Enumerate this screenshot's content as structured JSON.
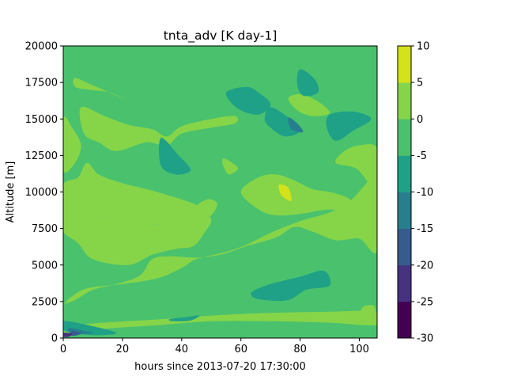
{
  "chart_data": {
    "type": "contourf",
    "title": "tnta_adv [K day-1]",
    "xlabel": "hours since 2013-07-20 17:30:00",
    "ylabel": "Altitude [m]",
    "xlim": [
      0,
      106
    ],
    "ylim": [
      0,
      20000
    ],
    "x_ticks": [
      0,
      20,
      40,
      60,
      80,
      100
    ],
    "y_ticks": [
      0,
      2500,
      5000,
      7500,
      10000,
      12500,
      15000,
      17500,
      20000
    ],
    "colorbar": {
      "levels": [
        -30,
        -25,
        -20,
        -15,
        -10,
        -5,
        0,
        5,
        10
      ],
      "colors": [
        "#440154",
        "#46327e",
        "#365c8d",
        "#277f8e",
        "#1fa187",
        "#4ac16d",
        "#86d549",
        "#d4e21a"
      ]
    },
    "background_level_range": [
      -5,
      0
    ],
    "regions": [
      {
        "level_range": [
          0,
          5
        ],
        "points": [
          [
            0,
            2200
          ],
          [
            2,
            2700
          ],
          [
            8,
            3400
          ],
          [
            20,
            3700
          ],
          [
            32,
            4100
          ],
          [
            40,
            4800
          ],
          [
            45,
            5400
          ],
          [
            55,
            5900
          ],
          [
            62,
            6400
          ],
          [
            70,
            7200
          ],
          [
            80,
            8000
          ],
          [
            90,
            8600
          ],
          [
            97,
            9400
          ],
          [
            102,
            10500
          ],
          [
            106,
            11200
          ],
          [
            106,
            6000
          ],
          [
            100,
            6800
          ],
          [
            92,
            6700
          ],
          [
            84,
            7300
          ],
          [
            78,
            7600
          ],
          [
            72,
            6900
          ],
          [
            62,
            6300
          ],
          [
            55,
            5800
          ],
          [
            50,
            5600
          ],
          [
            44,
            5500
          ],
          [
            36,
            5600
          ],
          [
            30,
            5400
          ],
          [
            26,
            4300
          ],
          [
            18,
            3700
          ],
          [
            10,
            3300
          ],
          [
            4,
            2600
          ],
          [
            0,
            2300
          ]
        ]
      },
      {
        "level_range": [
          0,
          5
        ],
        "points": [
          [
            0,
            7300
          ],
          [
            5,
            6500
          ],
          [
            10,
            5400
          ],
          [
            22,
            5000
          ],
          [
            30,
            5700
          ],
          [
            38,
            6100
          ],
          [
            44,
            6300
          ],
          [
            48,
            7300
          ],
          [
            50,
            8100
          ],
          [
            47,
            8600
          ],
          [
            40,
            8000
          ],
          [
            30,
            7800
          ],
          [
            20,
            8200
          ],
          [
            12,
            8300
          ],
          [
            4,
            8500
          ],
          [
            0,
            8600
          ]
        ]
      },
      {
        "level_range": [
          0,
          5
        ],
        "points": [
          [
            0,
            8600
          ],
          [
            4,
            8500
          ],
          [
            12,
            8300
          ],
          [
            20,
            8200
          ],
          [
            30,
            7800
          ],
          [
            40,
            8000
          ],
          [
            47,
            8600
          ],
          [
            44,
            9200
          ],
          [
            35,
            9800
          ],
          [
            28,
            10200
          ],
          [
            20,
            10600
          ],
          [
            12,
            11200
          ],
          [
            8,
            12000
          ],
          [
            5,
            11000
          ],
          [
            0,
            10500
          ]
        ]
      },
      {
        "level_range": [
          0,
          5
        ],
        "points": [
          [
            60,
            10000
          ],
          [
            66,
            11000
          ],
          [
            72,
            11200
          ],
          [
            78,
            10800
          ],
          [
            84,
            10200
          ],
          [
            90,
            10000
          ],
          [
            96,
            9600
          ],
          [
            100,
            8900
          ],
          [
            98,
            8500
          ],
          [
            90,
            8800
          ],
          [
            80,
            8500
          ],
          [
            72,
            8400
          ],
          [
            66,
            8800
          ]
        ]
      },
      {
        "level_range": [
          0,
          5
        ],
        "points": [
          [
            92,
            12000
          ],
          [
            99,
            11600
          ],
          [
            104,
            10400
          ],
          [
            106,
            10600
          ],
          [
            106,
            13000
          ],
          [
            100,
            13200
          ],
          [
            95,
            12800
          ]
        ]
      },
      {
        "level_range": [
          0,
          5
        ],
        "points": [
          [
            6,
            15800
          ],
          [
            14,
            15200
          ],
          [
            22,
            14600
          ],
          [
            30,
            14300
          ],
          [
            35,
            13800
          ],
          [
            40,
            14500
          ],
          [
            50,
            15000
          ],
          [
            58,
            15200
          ],
          [
            58,
            14700
          ],
          [
            50,
            14400
          ],
          [
            40,
            14000
          ],
          [
            35,
            13200
          ],
          [
            28,
            13400
          ],
          [
            18,
            12800
          ],
          [
            12,
            13400
          ],
          [
            7,
            14000
          ]
        ]
      },
      {
        "level_range": [
          0,
          5
        ],
        "points": [
          [
            4,
            17800
          ],
          [
            10,
            17300
          ],
          [
            18,
            16600
          ],
          [
            22,
            16200
          ],
          [
            16,
            16800
          ],
          [
            9,
            17000
          ],
          [
            4,
            17200
          ]
        ]
      },
      {
        "level_range": [
          0,
          5
        ],
        "points": [
          [
            0,
            15000
          ],
          [
            3,
            14400
          ],
          [
            6,
            13200
          ],
          [
            4,
            12000
          ],
          [
            0,
            11500
          ]
        ]
      },
      {
        "level_range": [
          0,
          5
        ],
        "points": [
          [
            46,
            8000
          ],
          [
            50,
            8400
          ],
          [
            52,
            9200
          ],
          [
            49,
            9500
          ],
          [
            45,
            9000
          ]
        ]
      },
      {
        "level_range": [
          0,
          5
        ],
        "points": [
          [
            54,
            12300
          ],
          [
            57,
            12000
          ],
          [
            59,
            11600
          ],
          [
            56,
            11200
          ],
          [
            54,
            11800
          ]
        ]
      },
      {
        "level_range": [
          0,
          5
        ],
        "points": [
          [
            76,
            16400
          ],
          [
            80,
            16700
          ],
          [
            86,
            16200
          ],
          [
            90,
            15400
          ],
          [
            84,
            15200
          ],
          [
            79,
            15600
          ]
        ]
      },
      {
        "level_range": [
          0,
          5
        ],
        "points": [
          [
            0,
            700
          ],
          [
            10,
            1000
          ],
          [
            30,
            1250
          ],
          [
            60,
            1650
          ],
          [
            90,
            1800
          ],
          [
            106,
            1800
          ],
          [
            106,
            900
          ],
          [
            90,
            1050
          ],
          [
            70,
            1150
          ],
          [
            50,
            1150
          ],
          [
            30,
            850
          ],
          [
            15,
            650
          ],
          [
            5,
            300
          ],
          [
            0,
            300
          ]
        ]
      },
      {
        "level_range": [
          0,
          5
        ],
        "points": [
          [
            101,
            2100
          ],
          [
            105,
            2200
          ],
          [
            105,
            1300
          ],
          [
            101,
            1400
          ]
        ]
      },
      {
        "level_range": [
          -10,
          -5
        ],
        "points": [
          [
            33,
            13700
          ],
          [
            39,
            12500
          ],
          [
            43,
            11500
          ],
          [
            38,
            11200
          ],
          [
            33,
            11800
          ]
        ]
      },
      {
        "level_range": [
          -10,
          -5
        ],
        "points": [
          [
            64,
            3200
          ],
          [
            70,
            3700
          ],
          [
            80,
            4200
          ],
          [
            88,
            4600
          ],
          [
            90,
            3600
          ],
          [
            82,
            3300
          ],
          [
            76,
            2600
          ],
          [
            68,
            2600
          ],
          [
            64,
            2800
          ]
        ]
      },
      {
        "level_range": [
          -10,
          -5
        ],
        "points": [
          [
            55,
            16800
          ],
          [
            62,
            17200
          ],
          [
            66,
            16800
          ],
          [
            70,
            16000
          ],
          [
            66,
            15300
          ],
          [
            59,
            15700
          ]
        ]
      },
      {
        "level_range": [
          -10,
          -5
        ],
        "points": [
          [
            80,
            18400
          ],
          [
            85,
            17700
          ],
          [
            86,
            16800
          ],
          [
            81,
            16600
          ],
          [
            79,
            17400
          ]
        ]
      },
      {
        "level_range": [
          -10,
          -5
        ],
        "points": [
          [
            90,
            15300
          ],
          [
            98,
            15500
          ],
          [
            104,
            15000
          ],
          [
            98,
            14200
          ],
          [
            92,
            13500
          ],
          [
            89,
            14400
          ]
        ]
      },
      {
        "level_range": [
          -10,
          -5
        ],
        "points": [
          [
            70,
            15800
          ],
          [
            76,
            15100
          ],
          [
            80,
            14200
          ],
          [
            75,
            13800
          ],
          [
            70,
            14400
          ],
          [
            68,
            15000
          ]
        ]
      },
      {
        "level_range": [
          -10,
          -5
        ],
        "points": [
          [
            36,
            1300
          ],
          [
            42,
            1450
          ],
          [
            46,
            1550
          ],
          [
            43,
            1200
          ],
          [
            37,
            1150
          ]
        ]
      },
      {
        "level_range": [
          -10,
          -5
        ],
        "points": [
          [
            0,
            1150
          ],
          [
            8,
            900
          ],
          [
            18,
            350
          ],
          [
            10,
            200
          ],
          [
            2,
            400
          ],
          [
            0,
            600
          ]
        ]
      },
      {
        "level_range": [
          -15,
          -10
        ],
        "points": [
          [
            76,
            15100
          ],
          [
            79,
            14700
          ],
          [
            81,
            14100
          ],
          [
            77,
            14300
          ]
        ]
      },
      {
        "level_range": [
          -15,
          -10
        ],
        "points": [
          [
            2,
            700
          ],
          [
            7,
            500
          ],
          [
            10,
            350
          ],
          [
            4,
            250
          ],
          [
            2,
            400
          ]
        ]
      },
      {
        "level_range": [
          -20,
          -15
        ],
        "points": [
          [
            3,
            500
          ],
          [
            6,
            300
          ],
          [
            3,
            150
          ]
        ]
      },
      {
        "level_range": [
          -25,
          -20
        ],
        "points": [
          [
            0,
            350
          ],
          [
            3,
            300
          ],
          [
            2,
            100
          ],
          [
            0,
            100
          ]
        ]
      },
      {
        "level_range": [
          5,
          10
        ],
        "points": [
          [
            73,
            10500
          ],
          [
            76,
            10300
          ],
          [
            77,
            9400
          ],
          [
            74,
            9700
          ],
          [
            73,
            10100
          ]
        ]
      }
    ]
  }
}
